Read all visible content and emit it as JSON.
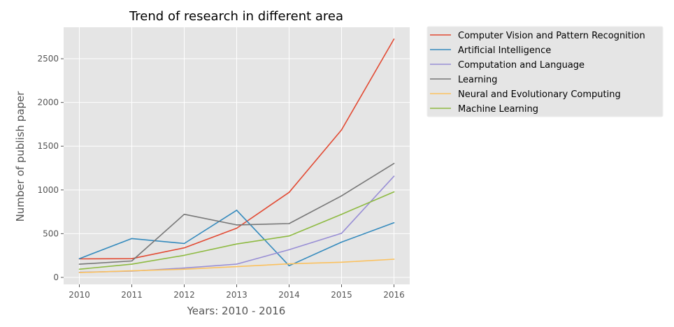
{
  "chart_data": {
    "type": "line",
    "title": "Trend of research in different area",
    "xlabel": "Years: 2010 - 2016",
    "ylabel": "Number of publish paper",
    "x": [
      2010,
      2011,
      2012,
      2013,
      2014,
      2015,
      2016
    ],
    "x_tick_labels": [
      "2010",
      "2011",
      "2012",
      "2013",
      "2014",
      "2015",
      "2016"
    ],
    "y_ticks": [
      0,
      500,
      1000,
      1500,
      2000,
      2500
    ],
    "y_tick_labels": [
      "0",
      "500",
      "1000",
      "1500",
      "2000",
      "2500"
    ],
    "xlim": [
      2009.7,
      2016.3
    ],
    "ylim": [
      -80,
      2860
    ],
    "grid": true,
    "legend_position": "outside-top-right",
    "series": [
      {
        "name": "Computer Vision and Pattern Recognition",
        "color": "#E24A33",
        "values": [
          212,
          214,
          338,
          562,
          972,
          1686,
          2725
        ]
      },
      {
        "name": "Artificial Intelligence",
        "color": "#348ABD",
        "values": [
          214,
          444,
          387,
          768,
          133,
          403,
          625
        ]
      },
      {
        "name": "Computation and Language",
        "color": "#988ED5",
        "values": [
          58,
          72,
          107,
          152,
          316,
          504,
          1157
        ]
      },
      {
        "name": "Learning",
        "color": "#777777",
        "values": [
          151,
          188,
          721,
          600,
          615,
          932,
          1303
        ]
      },
      {
        "name": "Neural and Evolutionary Computing",
        "color": "#FBC15E",
        "values": [
          55,
          75,
          93,
          123,
          155,
          173,
          208
        ]
      },
      {
        "name": "Machine Learning",
        "color": "#8EBA42",
        "values": [
          93,
          151,
          252,
          382,
          474,
          721,
          978
        ]
      }
    ]
  }
}
